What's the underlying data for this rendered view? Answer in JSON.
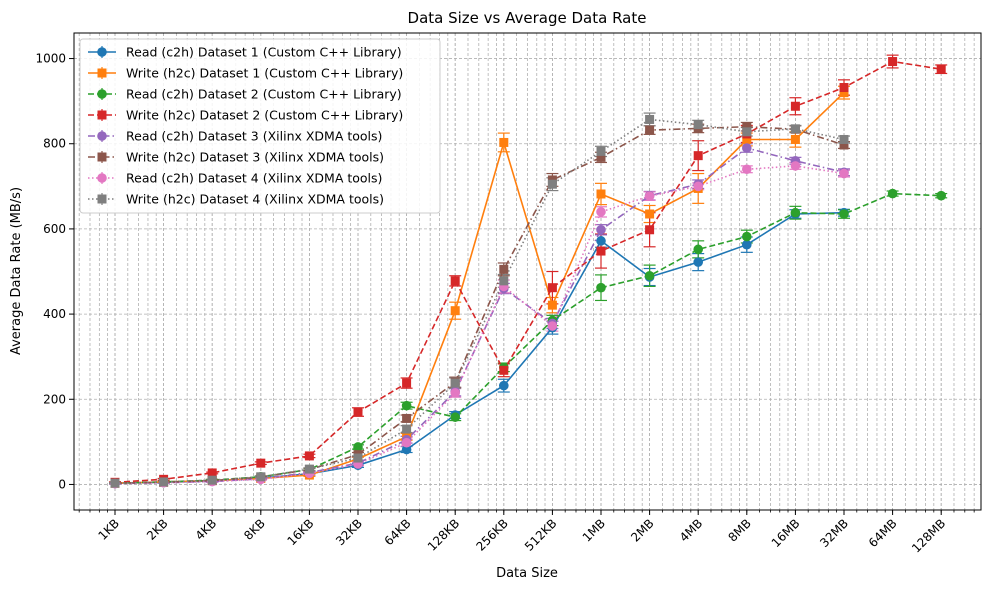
{
  "chart_data": {
    "type": "line",
    "title": "Data Size vs Average Data Rate",
    "xlabel": "Data Size",
    "ylabel": "Average Data Rate (MB/s)",
    "xscale": "log2",
    "x_tick_labels": [
      "1KB",
      "2KB",
      "4KB",
      "8KB",
      "16KB",
      "32KB",
      "64KB",
      "128KB",
      "256KB",
      "512KB",
      "1MB",
      "2MB",
      "4MB",
      "8MB",
      "16MB",
      "32MB",
      "64MB",
      "128MB"
    ],
    "ylim": [
      -60,
      1060
    ],
    "y_ticks": [
      0,
      200,
      400,
      600,
      800,
      1000
    ],
    "grid": true,
    "legend_position": "top-left",
    "series": [
      {
        "name": "Read (c2h) Dataset 1 (Custom C++ Library)",
        "color": "#1f77b4",
        "marker": "circle",
        "linestyle": "solid",
        "x": [
          "1KB",
          "2KB",
          "4KB",
          "8KB",
          "16KB",
          "32KB",
          "64KB",
          "128KB",
          "256KB",
          "512KB",
          "1MB",
          "2MB",
          "4MB",
          "8MB",
          "16MB",
          "32MB"
        ],
        "values": [
          3,
          5,
          8,
          15,
          25,
          45,
          82,
          163,
          232,
          368,
          572,
          487,
          522,
          563,
          635,
          638
        ],
        "errors": [
          2,
          2,
          2,
          3,
          3,
          5,
          7,
          8,
          15,
          15,
          15,
          20,
          20,
          18,
          10,
          8
        ]
      },
      {
        "name": "Write (h2c) Dataset 1 (Custom C++ Library)",
        "color": "#ff7f0e",
        "marker": "square",
        "linestyle": "solid",
        "x": [
          "1KB",
          "2KB",
          "4KB",
          "8KB",
          "16KB",
          "32KB",
          "64KB",
          "128KB",
          "256KB",
          "512KB",
          "1MB",
          "2MB",
          "4MB",
          "8MB",
          "16MB",
          "32MB"
        ],
        "values": [
          3,
          6,
          9,
          14,
          22,
          60,
          112,
          408,
          803,
          421,
          682,
          635,
          695,
          810,
          810,
          920
        ],
        "errors": [
          1,
          2,
          2,
          2,
          3,
          4,
          8,
          20,
          22,
          18,
          25,
          20,
          35,
          15,
          18,
          15
        ]
      },
      {
        "name": "Read (c2h) Dataset 2 (Custom C++ Library)",
        "color": "#2ca02c",
        "marker": "circle",
        "linestyle": "dashed",
        "x": [
          "1KB",
          "2KB",
          "4KB",
          "8KB",
          "16KB",
          "32KB",
          "64KB",
          "128KB",
          "256KB",
          "512KB",
          "1MB",
          "2MB",
          "4MB",
          "8MB",
          "16MB",
          "32MB",
          "64MB",
          "128MB"
        ],
        "values": [
          3,
          6,
          10,
          18,
          35,
          88,
          185,
          158,
          275,
          385,
          462,
          490,
          552,
          582,
          638,
          635,
          683,
          678
        ],
        "errors": [
          1,
          2,
          2,
          2,
          3,
          5,
          8,
          8,
          10,
          12,
          30,
          25,
          20,
          15,
          15,
          10,
          6,
          5
        ]
      },
      {
        "name": "Write (h2c) Dataset 2 (Custom C++ Library)",
        "color": "#d62728",
        "marker": "square",
        "linestyle": "dashed",
        "x": [
          "1KB",
          "2KB",
          "4KB",
          "8KB",
          "16KB",
          "32KB",
          "64KB",
          "128KB",
          "256KB",
          "512KB",
          "1MB",
          "2MB",
          "4MB",
          "8MB",
          "16MB",
          "32MB",
          "64MB",
          "128MB"
        ],
        "values": [
          5,
          12,
          27,
          50,
          67,
          170,
          238,
          478,
          268,
          462,
          548,
          598,
          772,
          823,
          888,
          932,
          993,
          975
        ],
        "errors": [
          1,
          2,
          2,
          3,
          4,
          10,
          12,
          12,
          15,
          38,
          40,
          40,
          35,
          20,
          20,
          18,
          15,
          10
        ]
      },
      {
        "name": "Read (c2h) Dataset 3 (Xilinx XDMA tools)",
        "color": "#9467bd",
        "marker": "circle",
        "linestyle": "dashdot",
        "x": [
          "1KB",
          "2KB",
          "4KB",
          "8KB",
          "16KB",
          "32KB",
          "64KB",
          "128KB",
          "256KB",
          "512KB",
          "1MB",
          "2MB",
          "4MB",
          "8MB",
          "16MB",
          "32MB"
        ],
        "values": [
          2,
          4,
          7,
          13,
          28,
          50,
          105,
          218,
          460,
          378,
          598,
          678,
          705,
          790,
          760,
          733
        ],
        "errors": [
          1,
          1,
          2,
          2,
          3,
          5,
          8,
          10,
          12,
          12,
          12,
          10,
          10,
          10,
          8,
          8
        ]
      },
      {
        "name": "Write (h2c) Dataset 3 (Xilinx XDMA tools)",
        "color": "#8c564b",
        "marker": "square",
        "linestyle": "dashdot",
        "x": [
          "1KB",
          "2KB",
          "4KB",
          "8KB",
          "16KB",
          "32KB",
          "64KB",
          "128KB",
          "256KB",
          "512KB",
          "1MB",
          "2MB",
          "4MB",
          "8MB",
          "16MB",
          "32MB"
        ],
        "values": [
          3,
          5,
          9,
          17,
          35,
          70,
          155,
          240,
          505,
          715,
          768,
          832,
          836,
          840,
          834,
          797
        ],
        "errors": [
          1,
          1,
          2,
          2,
          3,
          5,
          8,
          12,
          15,
          15,
          12,
          10,
          10,
          10,
          8,
          8
        ]
      },
      {
        "name": "Read (c2h) Dataset 4 (Xilinx XDMA tools)",
        "color": "#e377c2",
        "marker": "circle",
        "linestyle": "dotted",
        "x": [
          "1KB",
          "2KB",
          "4KB",
          "8KB",
          "16KB",
          "32KB",
          "64KB",
          "128KB",
          "256KB",
          "512KB",
          "1MB",
          "2MB",
          "4MB",
          "8MB",
          "16MB",
          "32MB"
        ],
        "values": [
          2,
          4,
          7,
          12,
          26,
          48,
          98,
          215,
          465,
          372,
          640,
          677,
          700,
          740,
          748,
          730
        ],
        "errors": [
          1,
          1,
          2,
          2,
          3,
          4,
          8,
          10,
          15,
          12,
          12,
          10,
          8,
          8,
          8,
          8
        ]
      },
      {
        "name": "Write (h2c) Dataset 4 (Xilinx XDMA tools)",
        "color": "#7f7f7f",
        "marker": "square",
        "linestyle": "dotted",
        "x": [
          "1KB",
          "2KB",
          "4KB",
          "8KB",
          "16KB",
          "32KB",
          "64KB",
          "128KB",
          "256KB",
          "512KB",
          "1MB",
          "2MB",
          "4MB",
          "8MB",
          "16MB",
          "32MB"
        ],
        "values": [
          3,
          6,
          10,
          18,
          36,
          62,
          130,
          238,
          478,
          705,
          782,
          857,
          845,
          828,
          835,
          810
        ],
        "errors": [
          1,
          1,
          2,
          2,
          3,
          5,
          8,
          12,
          15,
          15,
          12,
          15,
          10,
          10,
          8,
          8
        ]
      }
    ]
  }
}
